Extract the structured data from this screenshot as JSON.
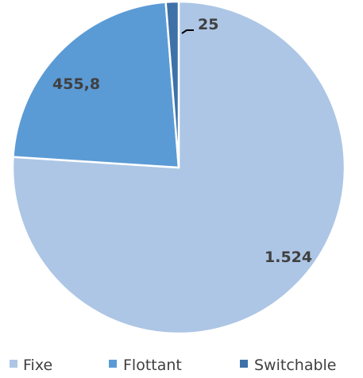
{
  "chart_data": {
    "type": "pie",
    "categories": [
      "Fixe",
      "Flottant",
      "Switchable"
    ],
    "values": [
      1524,
      455.8,
      25
    ],
    "data_labels": [
      "1.524",
      "455,8",
      "25"
    ],
    "colors": [
      "#adc6e5",
      "#5b9bd5",
      "#3d71a8"
    ],
    "legend_position": "bottom"
  }
}
